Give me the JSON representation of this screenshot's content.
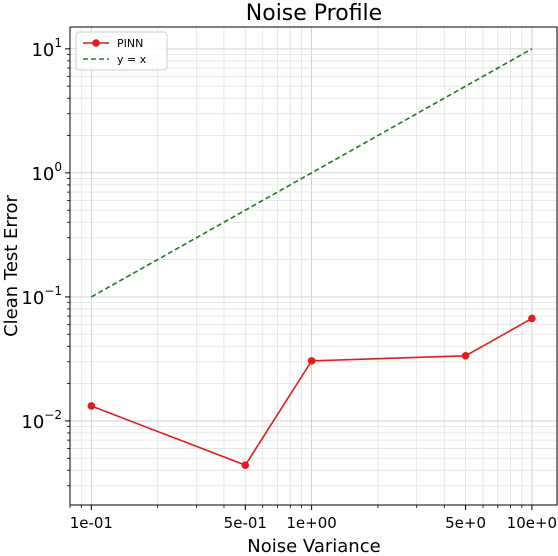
{
  "chart_data": {
    "type": "line",
    "title": "Noise Profile",
    "xlabel": "Noise Variance",
    "ylabel": "Clean Test Error",
    "xscale": "log",
    "yscale": "log",
    "xlim": [
      0.08,
      13
    ],
    "ylim": [
      0.0021,
      15
    ],
    "grid": true,
    "legend_position": "top-left",
    "x_ticks": [
      {
        "value": 0.1,
        "label": "1e-01"
      },
      {
        "value": 0.5,
        "label": "5e-01"
      },
      {
        "value": 1,
        "label": "1e+00"
      },
      {
        "value": 5,
        "label": "5e+0"
      },
      {
        "value": 10,
        "label": "10e+0"
      }
    ],
    "y_ticks": [
      {
        "value": 0.01,
        "base": "10",
        "exp": "−2"
      },
      {
        "value": 0.1,
        "base": "10",
        "exp": "−1"
      },
      {
        "value": 1,
        "base": "10",
        "exp": "0"
      },
      {
        "value": 10,
        "base": "10",
        "exp": "1"
      }
    ],
    "series": [
      {
        "name": "PINN",
        "color": "#e41a1c",
        "style": "solid",
        "marker": "circle",
        "x": [
          0.1,
          0.5,
          1,
          5,
          10
        ],
        "y": [
          0.0132,
          0.0044,
          0.0305,
          0.0335,
          0.067
        ]
      },
      {
        "name": "y = x",
        "color": "#1f7a1f",
        "style": "dashed",
        "marker": "none",
        "x": [
          0.1,
          0.5,
          1,
          5,
          10
        ],
        "y": [
          0.1,
          0.5,
          1,
          5,
          10
        ]
      }
    ]
  }
}
